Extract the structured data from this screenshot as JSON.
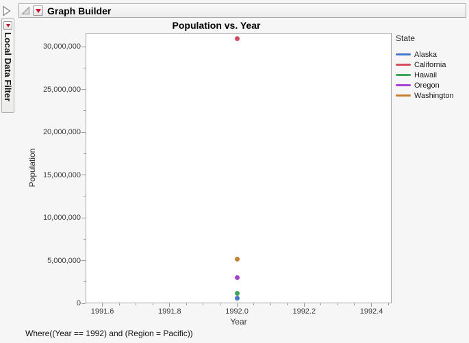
{
  "header": {
    "title": "Graph Builder"
  },
  "sidebar": {
    "tab_label": "Local Data Filter"
  },
  "icons": {
    "panel_collapsed": "right-triangle-icon",
    "report_disclosure": "open-disclosure-triangle-icon",
    "header_menu": "red-triangle-icon",
    "filter_menu": "red-triangle-icon"
  },
  "colors": {
    "accent_red": "#c8102e",
    "plot_border": "#a3a3a3",
    "tick": "#999999"
  },
  "footer": {
    "where_clause": "Where((Year == 1992) and (Region = Pacific))"
  },
  "chart_data": {
    "type": "scatter",
    "title": "Population vs. Year",
    "xlabel": "Year",
    "ylabel": "Population",
    "xlim": [
      1991.55,
      1992.46
    ],
    "ylim": [
      0,
      31600000
    ],
    "x_major_ticks": [
      1991.6,
      1991.8,
      1992.0,
      1992.2,
      1992.4
    ],
    "x_tick_labels": [
      "1991.6",
      "1991.8",
      "1992.0",
      "1992.2",
      "1992.4"
    ],
    "x_minor_step": 0.05,
    "y_major_ticks": [
      0,
      5000000,
      10000000,
      15000000,
      20000000,
      25000000,
      30000000
    ],
    "y_tick_labels": [
      "0",
      "5,000,000",
      "10,000,000",
      "15,000,000",
      "20,000,000",
      "25,000,000",
      "30,000,000"
    ],
    "y_minor_step": 2500000,
    "grid": false,
    "legend_title": "State",
    "legend_position": "right",
    "series": [
      {
        "name": "Alaska",
        "color": "#4477cf",
        "points": [
          {
            "x": 1992,
            "y": 600000
          }
        ]
      },
      {
        "name": "California",
        "color": "#d94a5e",
        "points": [
          {
            "x": 1992,
            "y": 30900000
          }
        ]
      },
      {
        "name": "Hawaii",
        "color": "#3aa755",
        "points": [
          {
            "x": 1992,
            "y": 1150000
          }
        ]
      },
      {
        "name": "Oregon",
        "color": "#ab3fd4",
        "points": [
          {
            "x": 1992,
            "y": 3000000
          }
        ]
      },
      {
        "name": "Washington",
        "color": "#c97e2e",
        "points": [
          {
            "x": 1992,
            "y": 5200000
          }
        ]
      }
    ]
  }
}
